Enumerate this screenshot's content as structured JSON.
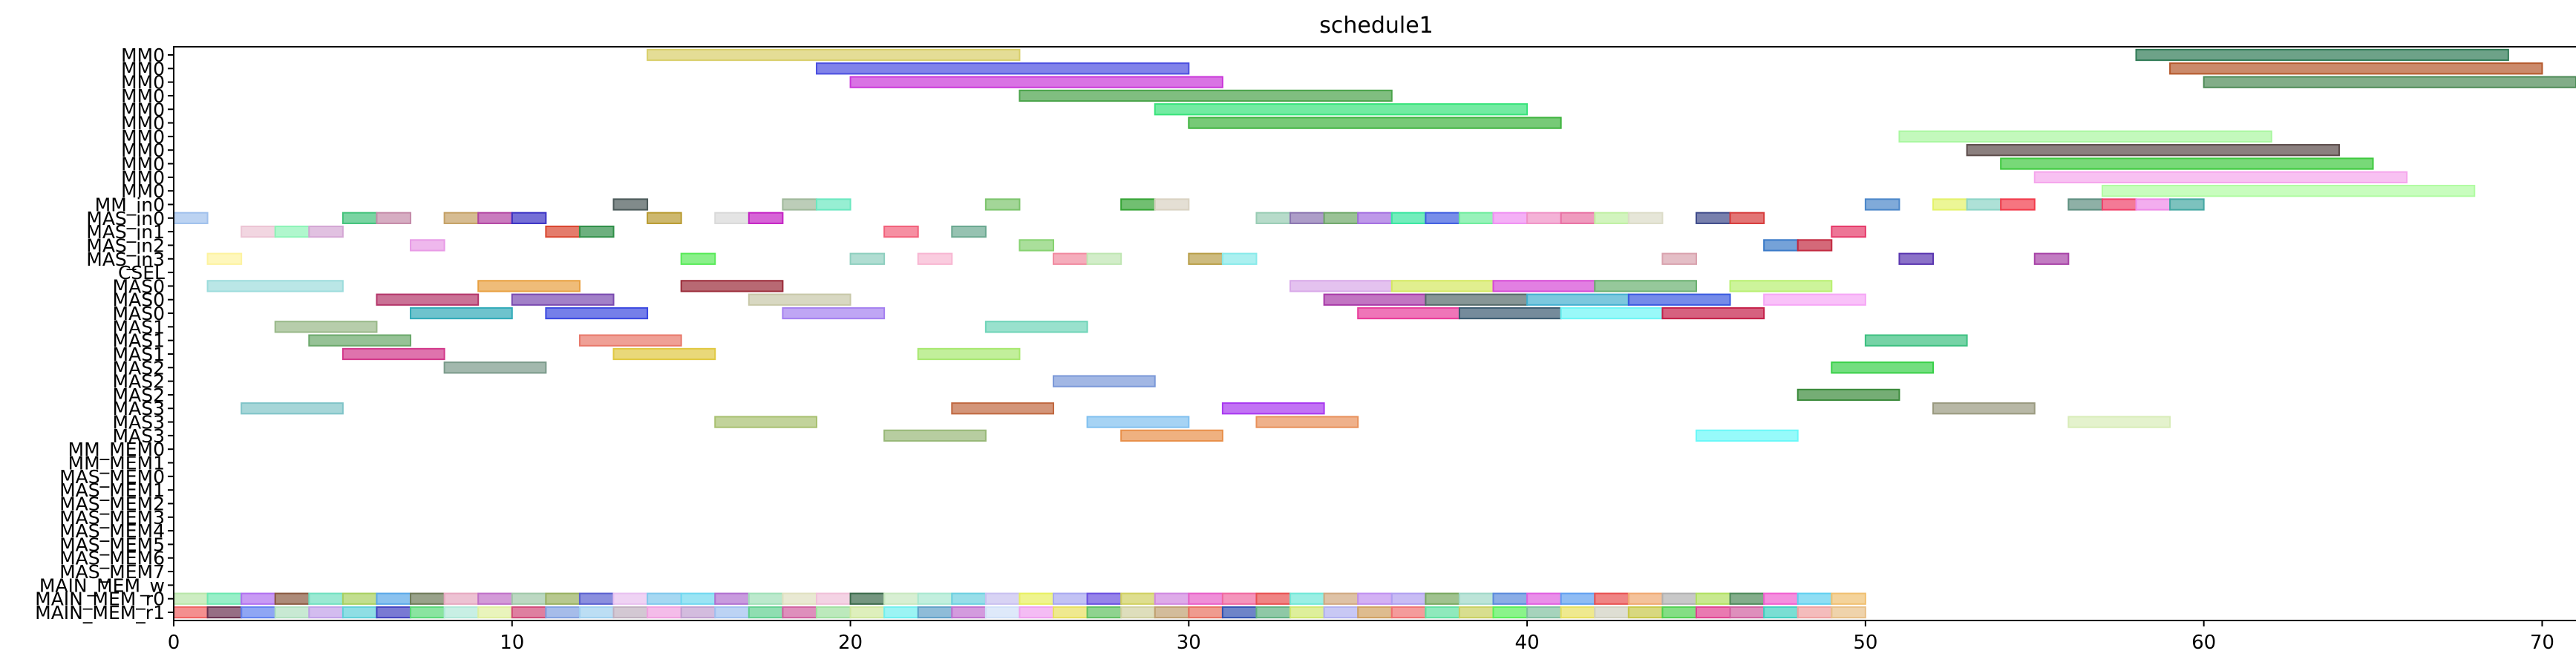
{
  "chart_data": {
    "type": "gantt",
    "title": "schedule1",
    "xlabel": "",
    "ylabel": "",
    "xlim": [
      0,
      71
    ],
    "x_ticks": [
      0,
      10,
      20,
      30,
      40,
      50,
      60,
      70
    ],
    "grid": false,
    "rows": [
      "MM0",
      "MM0",
      "MM0",
      "MM0",
      "MM0",
      "MM0",
      "MM0",
      "MM0",
      "MM0",
      "MM0",
      "MM0",
      "MM_in0",
      "MAS_in0",
      "MAS_in1",
      "MAS_in2",
      "MAS_in3",
      "CSEL",
      "MAS0",
      "MAS0",
      "MAS0",
      "MAS1",
      "MAS1",
      "MAS1",
      "MAS2",
      "MAS2",
      "MAS2",
      "MAS3",
      "MAS3",
      "MAS3",
      "MM_MEM0",
      "MM_MEM1",
      "MAS_MEM0",
      "MAS_MEM1",
      "MAS_MEM2",
      "MAS_MEM3",
      "MAS_MEM4",
      "MAS_MEM5",
      "MAS_MEM6",
      "MAS_MEM7",
      "MAIN_MEM_w",
      "MAIN_MEM_r0",
      "MAIN_MEM_r1"
    ],
    "tasks": [
      {
        "row": 0,
        "start": 14,
        "end": 25,
        "color": "#d9cf6a"
      },
      {
        "row": 0,
        "start": 58,
        "end": 69,
        "color": "#2f7a55"
      },
      {
        "row": 1,
        "start": 19,
        "end": 30,
        "color": "#4b4fe0"
      },
      {
        "row": 1,
        "start": 59,
        "end": 70,
        "color": "#b5592c"
      },
      {
        "row": 2,
        "start": 20,
        "end": 31,
        "color": "#c937d9"
      },
      {
        "row": 2,
        "start": 60,
        "end": 71,
        "color": "#4d8a56"
      },
      {
        "row": 3,
        "start": 25,
        "end": 36,
        "color": "#4aa34a"
      },
      {
        "row": 4,
        "start": 29,
        "end": 40,
        "color": "#37e37a"
      },
      {
        "row": 5,
        "start": 30,
        "end": 41,
        "color": "#3db33d"
      },
      {
        "row": 6,
        "start": 51,
        "end": 62,
        "color": "#a9f7a0"
      },
      {
        "row": 7,
        "start": 53,
        "end": 64,
        "color": "#5a4a48"
      },
      {
        "row": 8,
        "start": 54,
        "end": 65,
        "color": "#3ec93e"
      },
      {
        "row": 9,
        "start": 55,
        "end": 66,
        "color": "#f5a6ec"
      },
      {
        "row": 10,
        "start": 57,
        "end": 68,
        "color": "#b0fca2"
      },
      {
        "row": 11,
        "start": 13,
        "end": 14,
        "color": "#4c5a5a"
      },
      {
        "row": 11,
        "start": 18,
        "end": 19,
        "color": "#9fb89a"
      },
      {
        "row": 11,
        "start": 19,
        "end": 20,
        "color": "#6be8c0"
      },
      {
        "row": 11,
        "start": 24,
        "end": 25,
        "color": "#7cc46c"
      },
      {
        "row": 11,
        "start": 28,
        "end": 29,
        "color": "#35a435"
      },
      {
        "row": 11,
        "start": 29,
        "end": 30,
        "color": "#d9d2c2"
      },
      {
        "row": 11,
        "start": 50,
        "end": 51,
        "color": "#4a86c9"
      },
      {
        "row": 11,
        "start": 52,
        "end": 53,
        "color": "#e4f26a"
      },
      {
        "row": 11,
        "start": 53,
        "end": 54,
        "color": "#8cd4c6"
      },
      {
        "row": 11,
        "start": 54,
        "end": 55,
        "color": "#f23a4a"
      },
      {
        "row": 11,
        "start": 56,
        "end": 57,
        "color": "#5e8f80"
      },
      {
        "row": 11,
        "start": 57,
        "end": 58,
        "color": "#f0426a"
      },
      {
        "row": 11,
        "start": 58,
        "end": 59,
        "color": "#ee8ae8"
      },
      {
        "row": 11,
        "start": 59,
        "end": 60,
        "color": "#44a8a2"
      },
      {
        "row": 12,
        "start": 0,
        "end": 1,
        "color": "#9fc0ec"
      },
      {
        "row": 12,
        "start": 5,
        "end": 6,
        "color": "#42c27a"
      },
      {
        "row": 12,
        "start": 6,
        "end": 7,
        "color": "#c48aa8"
      },
      {
        "row": 12,
        "start": 8,
        "end": 9,
        "color": "#c4a064"
      },
      {
        "row": 12,
        "start": 9,
        "end": 10,
        "color": "#b245a2"
      },
      {
        "row": 12,
        "start": 10,
        "end": 11,
        "color": "#3a32c4"
      },
      {
        "row": 12,
        "start": 14,
        "end": 15,
        "color": "#b89a30"
      },
      {
        "row": 12,
        "start": 16,
        "end": 17,
        "color": "#d9d9d9"
      },
      {
        "row": 12,
        "start": 17,
        "end": 18,
        "color": "#c422c4"
      },
      {
        "row": 12,
        "start": 32,
        "end": 33,
        "color": "#98ccb4"
      },
      {
        "row": 12,
        "start": 33,
        "end": 34,
        "color": "#8a74b0"
      },
      {
        "row": 12,
        "start": 34,
        "end": 35,
        "color": "#6fa86a"
      },
      {
        "row": 12,
        "start": 35,
        "end": 36,
        "color": "#a26ee0"
      },
      {
        "row": 12,
        "start": 36,
        "end": 37,
        "color": "#38e6a0"
      },
      {
        "row": 12,
        "start": 37,
        "end": 38,
        "color": "#3e5ee0"
      },
      {
        "row": 12,
        "start": 38,
        "end": 39,
        "color": "#6cec9c"
      },
      {
        "row": 12,
        "start": 39,
        "end": 40,
        "color": "#ef8ef2"
      },
      {
        "row": 12,
        "start": 40,
        "end": 41,
        "color": "#f092c6"
      },
      {
        "row": 12,
        "start": 41,
        "end": 42,
        "color": "#e870a2"
      },
      {
        "row": 12,
        "start": 42,
        "end": 43,
        "color": "#bff0a2"
      },
      {
        "row": 12,
        "start": 43,
        "end": 44,
        "color": "#dcdcc8"
      },
      {
        "row": 12,
        "start": 45,
        "end": 46,
        "color": "#3e4a8a"
      },
      {
        "row": 12,
        "start": 46,
        "end": 47,
        "color": "#d63a3a"
      },
      {
        "row": 13,
        "start": 2,
        "end": 3,
        "color": "#ecc4d4"
      },
      {
        "row": 13,
        "start": 3,
        "end": 4,
        "color": "#8ef4b8"
      },
      {
        "row": 13,
        "start": 4,
        "end": 5,
        "color": "#d4a6d4"
      },
      {
        "row": 13,
        "start": 11,
        "end": 12,
        "color": "#d9452e"
      },
      {
        "row": 13,
        "start": 12,
        "end": 13,
        "color": "#2f8f48"
      },
      {
        "row": 13,
        "start": 21,
        "end": 22,
        "color": "#f2607a"
      },
      {
        "row": 13,
        "start": 23,
        "end": 24,
        "color": "#6aa890"
      },
      {
        "row": 13,
        "start": 49,
        "end": 50,
        "color": "#e63a6a"
      },
      {
        "row": 14,
        "start": 7,
        "end": 8,
        "color": "#e89ae6"
      },
      {
        "row": 14,
        "start": 25,
        "end": 26,
        "color": "#86d270"
      },
      {
        "row": 14,
        "start": 47,
        "end": 48,
        "color": "#3a7ac8"
      },
      {
        "row": 14,
        "start": 48,
        "end": 49,
        "color": "#c22a40"
      },
      {
        "row": 15,
        "start": 1,
        "end": 2,
        "color": "#fdf3a0"
      },
      {
        "row": 15,
        "start": 15,
        "end": 16,
        "color": "#58ea58"
      },
      {
        "row": 15,
        "start": 20,
        "end": 21,
        "color": "#8ecfbf"
      },
      {
        "row": 15,
        "start": 22,
        "end": 23,
        "color": "#f8b6d2"
      },
      {
        "row": 15,
        "start": 26,
        "end": 27,
        "color": "#f18aa0"
      },
      {
        "row": 15,
        "start": 27,
        "end": 28,
        "color": "#bfe6b2"
      },
      {
        "row": 15,
        "start": 30,
        "end": 31,
        "color": "#b89e48"
      },
      {
        "row": 15,
        "start": 31,
        "end": 32,
        "color": "#88eaea"
      },
      {
        "row": 15,
        "start": 44,
        "end": 45,
        "color": "#d9a2ae"
      },
      {
        "row": 15,
        "start": 51,
        "end": 52,
        "color": "#5a36b0"
      },
      {
        "row": 15,
        "start": 55,
        "end": 56,
        "color": "#a844a8"
      },
      {
        "row": 16,
        "start": 0,
        "end": 0,
        "color": "#ffffff"
      },
      {
        "row": 17,
        "start": 1,
        "end": 5,
        "color": "#9cdcdc"
      },
      {
        "row": 17,
        "start": 9,
        "end": 12,
        "color": "#e8a040"
      },
      {
        "row": 17,
        "start": 15,
        "end": 18,
        "color": "#9a2a38"
      },
      {
        "row": 17,
        "start": 33,
        "end": 36,
        "color": "#d8a8e8"
      },
      {
        "row": 17,
        "start": 36,
        "end": 39,
        "color": "#d4e860"
      },
      {
        "row": 17,
        "start": 39,
        "end": 42,
        "color": "#d648d6"
      },
      {
        "row": 17,
        "start": 42,
        "end": 45,
        "color": "#6ab070"
      },
      {
        "row": 17,
        "start": 46,
        "end": 49,
        "color": "#b8f070"
      },
      {
        "row": 18,
        "start": 6,
        "end": 9,
        "color": "#b4366a"
      },
      {
        "row": 18,
        "start": 10,
        "end": 13,
        "color": "#7a4ab0"
      },
      {
        "row": 18,
        "start": 17,
        "end": 20,
        "color": "#c8c8a8"
      },
      {
        "row": 18,
        "start": 34,
        "end": 37,
        "color": "#a83aa8"
      },
      {
        "row": 18,
        "start": 37,
        "end": 40,
        "color": "#546a6a"
      },
      {
        "row": 18,
        "start": 40,
        "end": 43,
        "color": "#44b0d0"
      },
      {
        "row": 18,
        "start": 43,
        "end": 46,
        "color": "#3a5ae0"
      },
      {
        "row": 18,
        "start": 47,
        "end": 50,
        "color": "#f6a6f6"
      },
      {
        "row": 19,
        "start": 7,
        "end": 10,
        "color": "#30aab8"
      },
      {
        "row": 19,
        "start": 11,
        "end": 14,
        "color": "#3a48e0"
      },
      {
        "row": 19,
        "start": 18,
        "end": 21,
        "color": "#a480f0"
      },
      {
        "row": 19,
        "start": 35,
        "end": 38,
        "color": "#e83a9a"
      },
      {
        "row": 19,
        "start": 38,
        "end": 41,
        "color": "#3a5a70"
      },
      {
        "row": 19,
        "start": 41,
        "end": 44,
        "color": "#6ef6f6"
      },
      {
        "row": 19,
        "start": 44,
        "end": 47,
        "color": "#c41e48"
      },
      {
        "row": 20,
        "start": 3,
        "end": 6,
        "color": "#98b888"
      },
      {
        "row": 20,
        "start": 24,
        "end": 27,
        "color": "#6ed4b8"
      },
      {
        "row": 21,
        "start": 4,
        "end": 7,
        "color": "#6aa86a"
      },
      {
        "row": 21,
        "start": 12,
        "end": 15,
        "color": "#e8786a"
      },
      {
        "row": 21,
        "start": 50,
        "end": 53,
        "color": "#3cc080"
      },
      {
        "row": 22,
        "start": 5,
        "end": 8,
        "color": "#d2388a"
      },
      {
        "row": 22,
        "start": 13,
        "end": 16,
        "color": "#e0c840"
      },
      {
        "row": 22,
        "start": 22,
        "end": 25,
        "color": "#a8e870"
      },
      {
        "row": 23,
        "start": 8,
        "end": 11,
        "color": "#7a9a8a"
      },
      {
        "row": 23,
        "start": 49,
        "end": 52,
        "color": "#38d048"
      },
      {
        "row": 24,
        "start": 26,
        "end": 29,
        "color": "#7a98d8"
      },
      {
        "row": 25,
        "start": 48,
        "end": 51,
        "color": "#3a8a3a"
      },
      {
        "row": 26,
        "start": 2,
        "end": 5,
        "color": "#80c4c8"
      },
      {
        "row": 26,
        "start": 23,
        "end": 26,
        "color": "#c06840"
      },
      {
        "row": 26,
        "start": 31,
        "end": 34,
        "color": "#a838f0"
      },
      {
        "row": 26,
        "start": 52,
        "end": 55,
        "color": "#9a9a80"
      },
      {
        "row": 27,
        "start": 16,
        "end": 19,
        "color": "#a8c070"
      },
      {
        "row": 27,
        "start": 27,
        "end": 30,
        "color": "#80c0f0"
      },
      {
        "row": 27,
        "start": 32,
        "end": 35,
        "color": "#e8905a"
      },
      {
        "row": 27,
        "start": 56,
        "end": 59,
        "color": "#d8ecb8"
      },
      {
        "row": 28,
        "start": 21,
        "end": 24,
        "color": "#98b878"
      },
      {
        "row": 28,
        "start": 28,
        "end": 31,
        "color": "#e8904a"
      },
      {
        "row": 28,
        "start": 45,
        "end": 48,
        "color": "#6af8f8"
      }
    ],
    "mem_r0_colors": [
      "#b8e6a8",
      "#6ce8b0",
      "#b070f0",
      "#8a5a40",
      "#70e0c0",
      "#a8d060",
      "#5aa8e8",
      "#6e7a58",
      "#e6a8c0",
      "#c070c8",
      "#a0c8a8",
      "#98b060",
      "#5a60d0",
      "#e8c0f0",
      "#80c8ec",
      "#70d8f0",
      "#b070d0",
      "#a0e0b8",
      "#e0e0c0",
      "#f0c0d8",
      "#3a6a4a",
      "#c8e8c0",
      "#a8e8d0",
      "#6cd0e0",
      "#c8c0f0",
      "#e8f060",
      "#a8a8f0",
      "#6a50e0",
      "#d0d060",
      "#d088e0",
      "#e860c8",
      "#f068a0",
      "#e85050",
      "#70e8d8",
      "#d0a880",
      "#c090f0",
      "#b0a0f0",
      "#78a860",
      "#a0d8c8",
      "#5a8adc",
      "#e060e0",
      "#60a0f0",
      "#e85050",
      "#f0a870",
      "#b0b0b0",
      "#b0e060",
      "#4e8a5a",
      "#f060d0",
      "#60d0f0",
      "#f0c070"
    ],
    "mem_r1_colors": [
      "#f06060",
      "#6a3050",
      "#6080f0",
      "#b0e0c0",
      "#c0a0e8",
      "#60d0d8",
      "#4040c0",
      "#58d878",
      "#b0e8d8",
      "#e0f0a0",
      "#d04878",
      "#80a0e0",
      "#a0d0f0",
      "#c0b0c0",
      "#f0a0e0",
      "#c0a0d0",
      "#a0c0f0",
      "#60d090",
      "#d060a0",
      "#a0e0a0",
      "#d0e8a0",
      "#70f0f0",
      "#60a0c8",
      "#c070d0",
      "#d0e0f8",
      "#f0a0f0",
      "#e8e060",
      "#60c060",
      "#d0d0a0",
      "#c0a070",
      "#e87060",
      "#3050b0",
      "#60b080",
      "#d0e870",
      "#b0b0f0",
      "#d0a060",
      "#f07070",
      "#60e0a0",
      "#c8d060",
      "#58f058",
      "#80c0a0",
      "#e8e060",
      "#d0d0c0",
      "#c8c848",
      "#50d050",
      "#e04090",
      "#d060a0",
      "#40d0c0",
      "#f0a0a0",
      "#e8c088"
    ]
  }
}
